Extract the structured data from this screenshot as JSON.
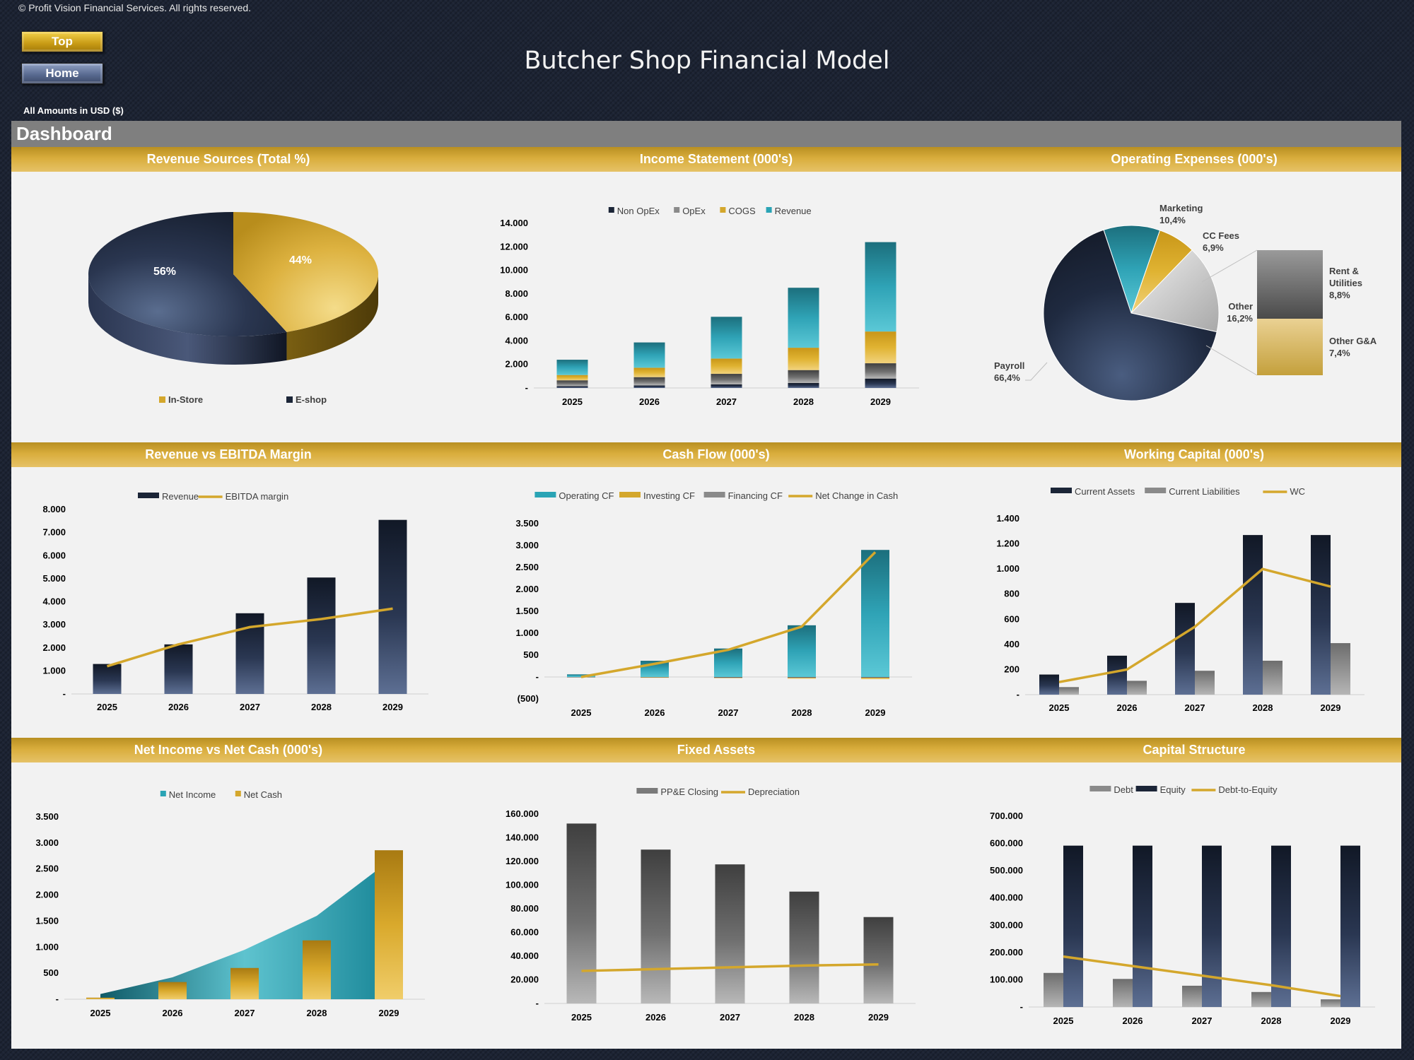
{
  "header": {
    "copyright": "© Profit Vision Financial Services. All rights reserved.",
    "top_button": "Top",
    "home_button": "Home",
    "title": "Butcher Shop Financial Model",
    "amounts_note": "All Amounts in  USD ($)",
    "section": "Dashboard"
  },
  "colors": {
    "gold": "#d4a72c",
    "navy": "#1b2537",
    "teal": "#2aa4b5",
    "gray": "#8a8a8a",
    "panel": "#f2f2f2"
  },
  "chart_data": [
    {
      "id": "revenue_sources",
      "type": "pie",
      "title": "Revenue Sources (Total %)",
      "legend": [
        "In-Store",
        "E-shop"
      ],
      "slices": [
        {
          "name": "In-Store",
          "value": 44,
          "label": "44%"
        },
        {
          "name": "E-shop",
          "value": 56,
          "label": "56%"
        }
      ]
    },
    {
      "id": "income_statement",
      "type": "bar",
      "stacked": true,
      "title": "Income Statement (000's)",
      "categories": [
        "2025",
        "2026",
        "2027",
        "2028",
        "2029"
      ],
      "series": [
        {
          "name": "Non OpEx",
          "values": [
            150,
            220,
            300,
            420,
            800
          ]
        },
        {
          "name": "OpEx",
          "values": [
            500,
            700,
            900,
            1100,
            1300
          ]
        },
        {
          "name": "COGS",
          "values": [
            450,
            800,
            1300,
            1900,
            2700
          ]
        },
        {
          "name": "Revenue",
          "values": [
            1300,
            2150,
            3550,
            5100,
            7600
          ]
        }
      ],
      "y_ticks": [
        "-",
        "2.000",
        "4.000",
        "6.000",
        "8.000",
        "10.000",
        "12.000",
        "14.000"
      ],
      "ylim": [
        0,
        14000
      ],
      "legend_position": "top"
    },
    {
      "id": "operating_expenses",
      "type": "pie",
      "title": "Operating Expenses (000's)",
      "slices": [
        {
          "name": "Marketing",
          "value": 10.4,
          "label": "10,4%"
        },
        {
          "name": "CC Fees",
          "value": 6.9,
          "label": "6,9%"
        },
        {
          "name": "Other",
          "value": 16.2,
          "label": "16,2%"
        },
        {
          "name": "Payroll",
          "value": 66.4,
          "label": "66,4%"
        }
      ],
      "breakdown": [
        {
          "name": "Rent & Utilities",
          "value": 8.8,
          "label": "8,8%"
        },
        {
          "name": "Other G&A",
          "value": 7.4,
          "label": "7,4%"
        }
      ]
    },
    {
      "id": "revenue_vs_ebitda",
      "type": "bar",
      "title": "Revenue vs EBITDA Margin",
      "categories": [
        "2025",
        "2026",
        "2027",
        "2028",
        "2029"
      ],
      "series": [
        {
          "name": "Revenue",
          "type": "bar",
          "values": [
            1300,
            2150,
            3500,
            5050,
            7550
          ]
        },
        {
          "name": "EBITDA margin",
          "type": "line",
          "values": [
            1200,
            2150,
            2900,
            3250,
            3700
          ]
        }
      ],
      "y_ticks": [
        "-",
        "1.000",
        "2.000",
        "3.000",
        "4.000",
        "5.000",
        "6.000",
        "7.000",
        "8.000"
      ],
      "ylim": [
        0,
        8000
      ],
      "legend_position": "top"
    },
    {
      "id": "cash_flow",
      "type": "bar",
      "title": "Cash Flow (000's)",
      "categories": [
        "2025",
        "2026",
        "2027",
        "2028",
        "2029"
      ],
      "series": [
        {
          "name": "Operating CF",
          "type": "bar",
          "values": [
            60,
            370,
            650,
            1180,
            2900
          ]
        },
        {
          "name": "Investing CF",
          "type": "bar",
          "values": [
            -10,
            -20,
            -30,
            -40,
            -50
          ]
        },
        {
          "name": "Financing CF",
          "type": "bar",
          "values": [
            -10,
            -10,
            -20,
            -20,
            -20
          ]
        },
        {
          "name": "Net Change in Cash",
          "type": "line",
          "values": [
            0,
            300,
            620,
            1150,
            2850
          ]
        }
      ],
      "y_ticks": [
        "(500)",
        "-",
        "500",
        "1.000",
        "1.500",
        "2.000",
        "2.500",
        "3.000",
        "3.500"
      ],
      "ylim": [
        -500,
        3500
      ],
      "legend_position": "top"
    },
    {
      "id": "working_capital",
      "type": "bar",
      "title": "Working Capital (000's)",
      "categories": [
        "2025",
        "2026",
        "2027",
        "2028",
        "2029"
      ],
      "series": [
        {
          "name": "Current Assets",
          "type": "bar",
          "values": [
            160,
            310,
            730,
            1270,
            1270
          ]
        },
        {
          "name": "Current Liabilities",
          "type": "bar",
          "values": [
            60,
            110,
            190,
            270,
            410
          ]
        },
        {
          "name": "WC",
          "type": "line",
          "values": [
            100,
            200,
            540,
            1000,
            860
          ]
        }
      ],
      "y_ticks": [
        "-",
        "200",
        "400",
        "600",
        "800",
        "1.000",
        "1.200",
        "1.400"
      ],
      "ylim": [
        0,
        1400
      ],
      "legend_position": "top"
    },
    {
      "id": "net_income_vs_net_cash",
      "type": "area",
      "title": "Net Income vs Net Cash (000's)",
      "categories": [
        "2025",
        "2026",
        "2027",
        "2028",
        "2029"
      ],
      "series": [
        {
          "name": "Net Income",
          "type": "area",
          "values": [
            100,
            420,
            950,
            1600,
            2650
          ]
        },
        {
          "name": "Net Cash",
          "type": "bar",
          "values": [
            30,
            330,
            600,
            1130,
            2860
          ]
        }
      ],
      "y_ticks": [
        "-",
        "500",
        "1.000",
        "1.500",
        "2.000",
        "2.500",
        "3.000",
        "3.500"
      ],
      "ylim": [
        0,
        3500
      ],
      "legend_position": "top"
    },
    {
      "id": "fixed_assets",
      "type": "bar",
      "title": "Fixed Assets",
      "categories": [
        "2025",
        "2026",
        "2027",
        "2028",
        "2029"
      ],
      "series": [
        {
          "name": "PP&E Closing",
          "type": "bar",
          "values": [
            152000,
            130000,
            117500,
            94500,
            73000
          ]
        },
        {
          "name": "Depreciation",
          "type": "line",
          "values": [
            27500,
            29000,
            30500,
            32000,
            33000
          ]
        }
      ],
      "y_ticks": [
        "-",
        "20.000",
        "40.000",
        "60.000",
        "80.000",
        "100.000",
        "120.000",
        "140.000",
        "160.000"
      ],
      "ylim": [
        0,
        160000
      ],
      "legend_position": "top"
    },
    {
      "id": "capital_structure",
      "type": "bar",
      "title": "Capital Structure",
      "categories": [
        "2025",
        "2026",
        "2027",
        "2028",
        "2029"
      ],
      "series": [
        {
          "name": "Debt",
          "type": "bar",
          "values": [
            125000,
            103000,
            78000,
            55000,
            28000
          ]
        },
        {
          "name": "Equity",
          "type": "bar",
          "values": [
            592000,
            592000,
            592000,
            592000,
            592000
          ]
        },
        {
          "name": "Debt-to-Equity",
          "type": "line",
          "values": [
            185000,
            150000,
            115000,
            80000,
            40000
          ]
        }
      ],
      "y_ticks": [
        "-",
        "100.000",
        "200.000",
        "300.000",
        "400.000",
        "500.000",
        "600.000",
        "700.000"
      ],
      "ylim": [
        0,
        700000
      ],
      "legend_position": "top"
    }
  ]
}
